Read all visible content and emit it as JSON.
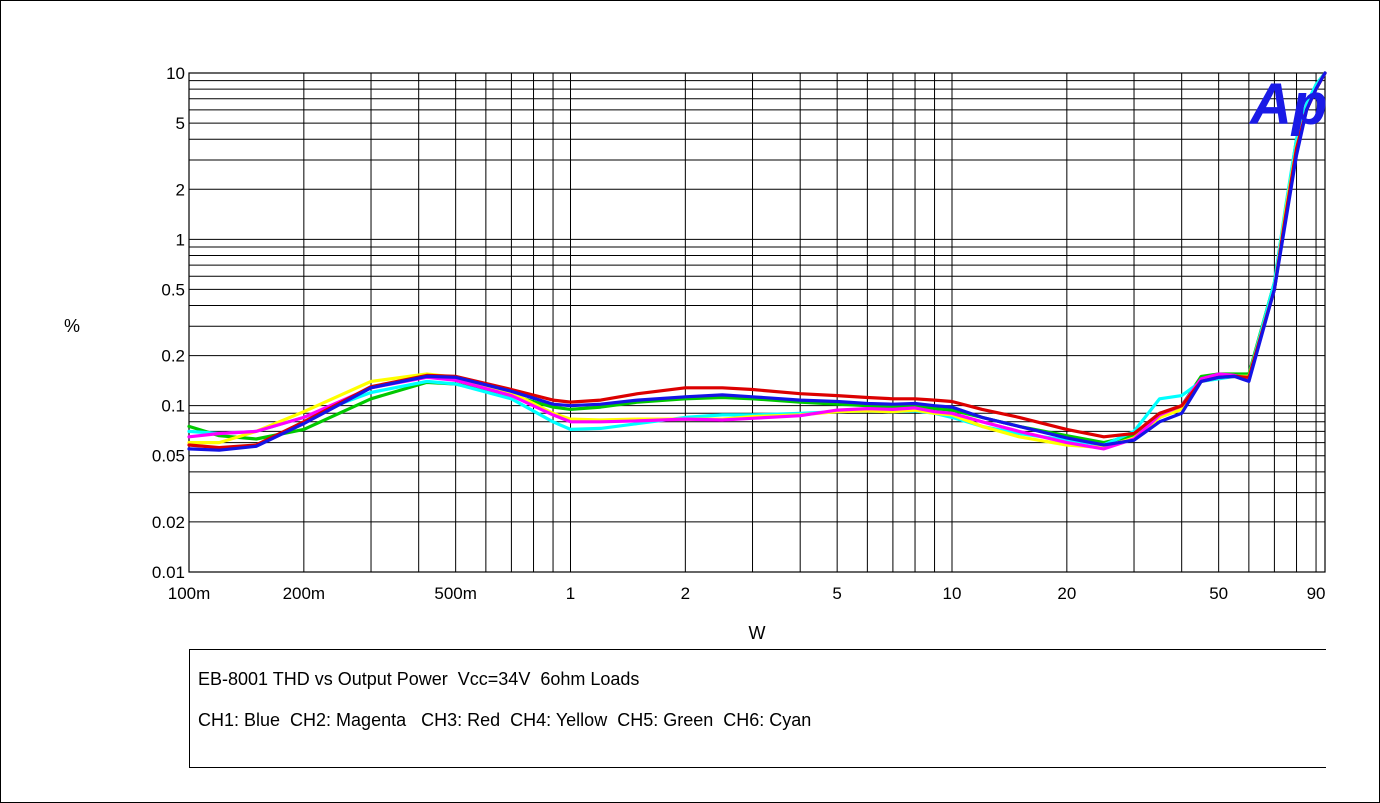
{
  "chart_data": {
    "type": "line",
    "xlabel": "W",
    "ylabel": "%",
    "x_scale": "log",
    "y_scale": "log",
    "xlim": [
      0.1,
      95
    ],
    "ylim": [
      0.01,
      10
    ],
    "grid": true,
    "x_tick_labels": [
      "100m",
      "200m",
      "500m",
      "1",
      "2",
      "5",
      "10",
      "20",
      "50",
      "90"
    ],
    "x_tick_values": [
      0.1,
      0.2,
      0.5,
      1,
      2,
      5,
      10,
      20,
      50,
      90
    ],
    "y_tick_labels": [
      "10",
      "5",
      "2",
      "1",
      "0.5",
      "0.2",
      "0.1",
      "0.05",
      "0.02",
      "0.01"
    ],
    "y_tick_values": [
      10,
      5,
      2,
      1,
      0.5,
      0.2,
      0.1,
      0.05,
      0.02,
      0.01
    ],
    "logo_text": "Ap",
    "series": [
      {
        "color": "#00c800",
        "x": [
          0.1,
          0.12,
          0.15,
          0.2,
          0.3,
          0.42,
          0.5,
          0.7,
          0.9,
          1.0,
          1.2,
          1.5,
          2,
          2.5,
          3,
          4,
          5,
          6,
          7,
          8,
          9,
          10,
          12,
          15,
          20,
          25,
          30,
          35,
          40,
          45,
          50,
          55,
          60,
          70,
          75,
          80,
          85,
          90,
          95
        ],
        "y": [
          0.075,
          0.066,
          0.063,
          0.072,
          0.11,
          0.138,
          0.135,
          0.115,
          0.098,
          0.095,
          0.098,
          0.105,
          0.11,
          0.112,
          0.11,
          0.105,
          0.102,
          0.1,
          0.098,
          0.1,
          0.096,
          0.094,
          0.085,
          0.075,
          0.066,
          0.06,
          0.066,
          0.085,
          0.1,
          0.15,
          0.155,
          0.155,
          0.155,
          0.55,
          1.5,
          4.0,
          6.0,
          8.5,
          10
        ]
      },
      {
        "color": "#00ffff",
        "x": [
          0.1,
          0.12,
          0.15,
          0.2,
          0.3,
          0.42,
          0.5,
          0.7,
          0.9,
          1.0,
          1.2,
          1.5,
          2,
          2.5,
          3,
          4,
          5,
          6,
          7,
          8,
          9,
          10,
          12,
          15,
          20,
          25,
          30,
          35,
          40,
          45,
          50,
          55,
          60,
          70,
          75,
          80,
          85,
          90,
          95
        ],
        "y": [
          0.07,
          0.068,
          0.07,
          0.085,
          0.12,
          0.14,
          0.135,
          0.11,
          0.08,
          0.072,
          0.073,
          0.078,
          0.085,
          0.088,
          0.088,
          0.09,
          0.092,
          0.093,
          0.092,
          0.093,
          0.09,
          0.085,
          0.075,
          0.068,
          0.062,
          0.058,
          0.07,
          0.11,
          0.115,
          0.14,
          0.145,
          0.15,
          0.15,
          0.55,
          1.6,
          4.0,
          6.5,
          8.5,
          10
        ]
      },
      {
        "color": "#ffff00",
        "x": [
          0.1,
          0.12,
          0.15,
          0.2,
          0.3,
          0.42,
          0.5,
          0.7,
          0.9,
          1.0,
          1.2,
          1.5,
          2,
          2.5,
          3,
          4,
          5,
          6,
          7,
          8,
          9,
          10,
          12,
          15,
          20,
          25,
          30,
          35,
          40,
          45,
          50,
          55,
          60,
          70,
          75,
          80,
          85,
          90,
          95
        ],
        "y": [
          0.06,
          0.06,
          0.07,
          0.092,
          0.14,
          0.155,
          0.148,
          0.12,
          0.09,
          0.083,
          0.082,
          0.083,
          0.083,
          0.083,
          0.086,
          0.088,
          0.092,
          0.093,
          0.092,
          0.094,
          0.09,
          0.088,
          0.075,
          0.065,
          0.058,
          0.056,
          0.064,
          0.085,
          0.095,
          0.14,
          0.15,
          0.15,
          0.15,
          0.5,
          1.5,
          3.6,
          6.0,
          8.0,
          10
        ]
      },
      {
        "color": "#ff00ff",
        "x": [
          0.1,
          0.12,
          0.15,
          0.2,
          0.3,
          0.42,
          0.5,
          0.7,
          0.9,
          1.0,
          1.2,
          1.5,
          2,
          2.5,
          3,
          4,
          5,
          6,
          7,
          8,
          9,
          10,
          12,
          15,
          20,
          25,
          30,
          35,
          40,
          45,
          50,
          55,
          60,
          70,
          75,
          80,
          85,
          90,
          95
        ],
        "y": [
          0.065,
          0.068,
          0.07,
          0.085,
          0.128,
          0.148,
          0.142,
          0.115,
          0.088,
          0.08,
          0.08,
          0.081,
          0.083,
          0.082,
          0.084,
          0.087,
          0.094,
          0.096,
          0.095,
          0.097,
          0.092,
          0.09,
          0.08,
          0.07,
          0.06,
          0.055,
          0.063,
          0.088,
          0.1,
          0.145,
          0.155,
          0.152,
          0.145,
          0.5,
          1.4,
          3.5,
          6.0,
          8.0,
          10
        ]
      },
      {
        "color": "#dc0000",
        "x": [
          0.1,
          0.12,
          0.15,
          0.2,
          0.3,
          0.42,
          0.5,
          0.7,
          0.9,
          1.0,
          1.2,
          1.5,
          2,
          2.5,
          3,
          4,
          5,
          6,
          7,
          8,
          9,
          10,
          12,
          15,
          20,
          25,
          30,
          35,
          40,
          45,
          50,
          55,
          60,
          70,
          75,
          80,
          85,
          90,
          95
        ],
        "y": [
          0.058,
          0.056,
          0.058,
          0.08,
          0.13,
          0.152,
          0.15,
          0.125,
          0.108,
          0.105,
          0.108,
          0.118,
          0.128,
          0.128,
          0.125,
          0.118,
          0.115,
          0.112,
          0.11,
          0.11,
          0.108,
          0.106,
          0.095,
          0.085,
          0.072,
          0.065,
          0.068,
          0.09,
          0.1,
          0.14,
          0.148,
          0.15,
          0.148,
          0.5,
          1.4,
          3.5,
          6.0,
          8.0,
          10
        ]
      },
      {
        "color": "#1414e6",
        "x": [
          0.1,
          0.12,
          0.15,
          0.2,
          0.3,
          0.42,
          0.5,
          0.7,
          0.9,
          1.0,
          1.2,
          1.5,
          2,
          2.5,
          3,
          4,
          5,
          6,
          7,
          8,
          9,
          10,
          12,
          15,
          20,
          25,
          30,
          35,
          40,
          45,
          50,
          55,
          60,
          70,
          75,
          80,
          85,
          90,
          95
        ],
        "y": [
          0.055,
          0.054,
          0.057,
          0.078,
          0.128,
          0.15,
          0.148,
          0.122,
          0.102,
          0.1,
          0.102,
          0.108,
          0.113,
          0.116,
          0.113,
          0.108,
          0.106,
          0.103,
          0.102,
          0.103,
          0.1,
          0.098,
          0.085,
          0.075,
          0.064,
          0.058,
          0.062,
          0.08,
          0.09,
          0.14,
          0.148,
          0.15,
          0.14,
          0.5,
          1.3,
          3.2,
          6.0,
          8.0,
          10
        ]
      }
    ]
  },
  "caption": {
    "line1": "EB-8001 THD vs Output Power  Vcc=34V  6ohm Loads",
    "line2": "CH1: Blue  CH2: Magenta   CH3: Red  CH4: Yellow  CH5: Green  CH6: Cyan"
  }
}
